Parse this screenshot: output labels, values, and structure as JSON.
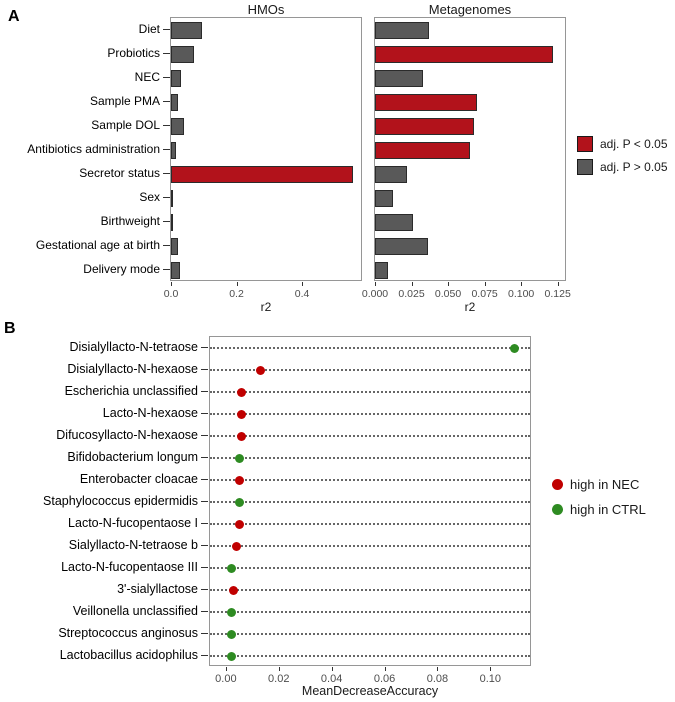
{
  "panel_a_label": "A",
  "panel_b_label": "B",
  "chart_data": [
    {
      "type": "bar",
      "orientation": "horizontal",
      "categories": [
        "Diet",
        "Probiotics",
        "NEC",
        "Sample PMA",
        "Sample DOL",
        "Antibiotics administration",
        "Secretor status",
        "Sex",
        "Birthweight",
        "Gestational age at birth",
        "Delivery mode"
      ],
      "xlabel": "r2",
      "grid": false,
      "facets": [
        {
          "title": "HMOs",
          "xlim": [
            0,
            0.58
          ],
          "xticks": [
            0.0,
            0.2,
            0.4
          ],
          "xtick_labels": [
            "0.0",
            "0.2",
            "0.4"
          ],
          "values": [
            0.095,
            0.07,
            0.03,
            0.022,
            0.04,
            0.016,
            0.555,
            0.006,
            0.003,
            0.022,
            0.028
          ],
          "significant": [
            false,
            false,
            false,
            false,
            false,
            false,
            true,
            false,
            false,
            false,
            false
          ]
        },
        {
          "title": "Metagenomes",
          "xlim": [
            0,
            0.13
          ],
          "xticks": [
            0,
            0.025,
            0.05,
            0.075,
            0.1,
            0.125
          ],
          "xtick_labels": [
            "0.000",
            "0.025",
            "0.050",
            "0.075",
            "0.100",
            "0.125"
          ],
          "values": [
            0.037,
            0.122,
            0.033,
            0.07,
            0.068,
            0.065,
            0.022,
            0.012,
            0.026,
            0.036,
            0.009
          ],
          "significant": [
            false,
            true,
            false,
            true,
            true,
            true,
            false,
            false,
            false,
            false,
            false
          ]
        }
      ],
      "colors": {
        "significant": "#b2121b",
        "not_significant": "#595959"
      },
      "legend": [
        {
          "label": "adj. P < 0.05",
          "color": "#b2121b"
        },
        {
          "label": "adj. P > 0.05",
          "color": "#595959"
        }
      ],
      "legend_position": "right"
    },
    {
      "type": "scatter",
      "orientation": "horizontal",
      "categories": [
        "Disialyllacto-N-tetraose",
        "Disialyllacto-N-hexaose",
        "Escherichia unclassified",
        "Lacto-N-hexaose",
        "Difucosyllacto-N-hexaose",
        "Bifidobacterium longum",
        "Enterobacter cloacae",
        "Staphylococcus epidermidis",
        "Lacto-N-fucopentaose I",
        "Sialyllacto-N-tetraose b",
        "Lacto-N-fucopentaose III",
        "3'-sialyllactose",
        "Veillonella unclassified",
        "Streptococcus anginosus",
        "Lactobacillus acidophilus"
      ],
      "values": [
        0.109,
        0.013,
        0.006,
        0.006,
        0.006,
        0.005,
        0.005,
        0.005,
        0.005,
        0.004,
        0.002,
        0.003,
        0.002,
        0.002,
        0.002
      ],
      "groups": [
        "CTRL",
        "NEC",
        "NEC",
        "NEC",
        "NEC",
        "CTRL",
        "NEC",
        "CTRL",
        "NEC",
        "NEC",
        "CTRL",
        "NEC",
        "CTRL",
        "CTRL",
        "CTRL"
      ],
      "xlabel": "MeanDecreaseAccuracy",
      "xlim": [
        -0.006,
        0.115
      ],
      "xticks": [
        0,
        0.02,
        0.04,
        0.06,
        0.08,
        0.1
      ],
      "xtick_labels": [
        "0.00",
        "0.02",
        "0.04",
        "0.06",
        "0.08",
        "0.10"
      ],
      "grid": "dotted-horizontal",
      "colors": {
        "NEC": "#c00000",
        "CTRL": "#2e8b22"
      },
      "legend": [
        {
          "label": "high in NEC",
          "color": "#c00000",
          "group": "NEC"
        },
        {
          "label": "high in CTRL",
          "color": "#2e8b22",
          "group": "CTRL"
        }
      ],
      "legend_position": "right"
    }
  ]
}
